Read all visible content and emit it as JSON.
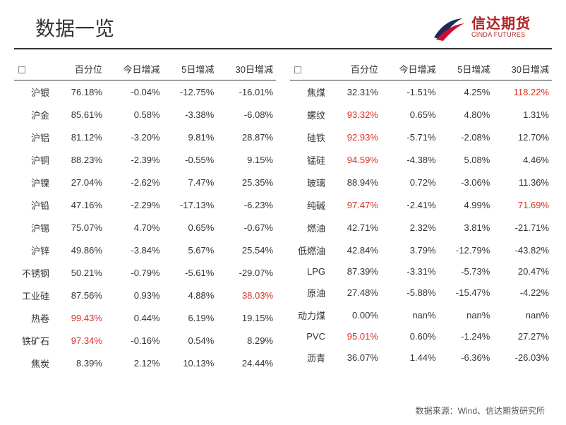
{
  "title": "数据一览",
  "logo": {
    "zh": "信达期货",
    "en": "CINDA FUTURES",
    "color": "#b22222",
    "swoosh_color_dark": "#1a2b5c",
    "swoosh_color_red": "#c8102e"
  },
  "columns": [
    "百分位",
    "今日增减",
    "5日增减",
    "30日增减"
  ],
  "left_table": [
    {
      "name": "沪银",
      "pct": "76.18%",
      "d1": "-0.04%",
      "d5": "-12.75%",
      "d30": "-16.01%"
    },
    {
      "name": "沪金",
      "pct": "85.61%",
      "d1": "0.58%",
      "d5": "-3.38%",
      "d30": "-6.08%"
    },
    {
      "name": "沪铝",
      "pct": "81.12%",
      "d1": "-3.20%",
      "d5": "9.81%",
      "d30": "28.87%"
    },
    {
      "name": "沪铜",
      "pct": "88.23%",
      "d1": "-2.39%",
      "d5": "-0.55%",
      "d30": "9.15%"
    },
    {
      "name": "沪镍",
      "pct": "27.04%",
      "d1": "-2.62%",
      "d5": "7.47%",
      "d30": "25.35%"
    },
    {
      "name": "沪铅",
      "pct": "47.16%",
      "d1": "-2.29%",
      "d5": "-17.13%",
      "d30": "-6.23%"
    },
    {
      "name": "沪锡",
      "pct": "75.07%",
      "d1": "4.70%",
      "d5": "0.65%",
      "d30": "-0.67%"
    },
    {
      "name": "沪锌",
      "pct": "49.86%",
      "d1": "-3.84%",
      "d5": "5.67%",
      "d30": "25.54%"
    },
    {
      "name": "不锈钢",
      "pct": "50.21%",
      "d1": "-0.79%",
      "d5": "-5.61%",
      "d30": "-29.07%"
    },
    {
      "name": "工业硅",
      "pct": "87.56%",
      "d1": "0.93%",
      "d5": "4.88%",
      "d30": "38.03%",
      "d30_red": true
    },
    {
      "name": "热卷",
      "pct": "99.43%",
      "pct_red": true,
      "d1": "0.44%",
      "d5": "6.19%",
      "d30": "19.15%"
    },
    {
      "name": "铁矿石",
      "pct": "97.34%",
      "pct_red": true,
      "d1": "-0.16%",
      "d5": "0.54%",
      "d30": "8.29%"
    },
    {
      "name": "焦炭",
      "pct": "8.39%",
      "d1": "2.12%",
      "d5": "10.13%",
      "d30": "24.44%"
    }
  ],
  "right_table": [
    {
      "name": "焦煤",
      "pct": "32.31%",
      "d1": "-1.51%",
      "d5": "4.25%",
      "d30": "118.22%",
      "d30_red": true
    },
    {
      "name": "螺纹",
      "pct": "93.32%",
      "pct_red": true,
      "d1": "0.65%",
      "d5": "4.80%",
      "d30": "1.31%"
    },
    {
      "name": "硅铁",
      "pct": "92.93%",
      "pct_red": true,
      "d1": "-5.71%",
      "d5": "-2.08%",
      "d30": "12.70%"
    },
    {
      "name": "锰硅",
      "pct": "94.59%",
      "pct_red": true,
      "d1": "-4.38%",
      "d5": "5.08%",
      "d30": "4.46%"
    },
    {
      "name": "玻璃",
      "pct": "88.94%",
      "d1": "0.72%",
      "d5": "-3.06%",
      "d30": "11.36%"
    },
    {
      "name": "纯碱",
      "pct": "97.47%",
      "pct_red": true,
      "d1": "-2.41%",
      "d5": "4.99%",
      "d30": "71.69%",
      "d30_red": true
    },
    {
      "name": "燃油",
      "pct": "42.71%",
      "d1": "2.32%",
      "d5": "3.81%",
      "d30": "-21.71%"
    },
    {
      "name": "低燃油",
      "pct": "42.84%",
      "d1": "3.79%",
      "d5": "-12.79%",
      "d30": "-43.82%"
    },
    {
      "name": "LPG",
      "pct": "87.39%",
      "d1": "-3.31%",
      "d5": "-5.73%",
      "d30": "20.47%"
    },
    {
      "name": "原油",
      "pct": "27.48%",
      "d1": "-5.88%",
      "d5": "-15.47%",
      "d30": "-4.22%"
    },
    {
      "name": "动力煤",
      "pct": "0.00%",
      "d1": "nan%",
      "d5": "nan%",
      "d30": "nan%"
    },
    {
      "name": "PVC",
      "pct": "95.01%",
      "pct_red": true,
      "d1": "0.60%",
      "d5": "-1.24%",
      "d30": "27.27%"
    },
    {
      "name": "沥青",
      "pct": "36.07%",
      "d1": "1.44%",
      "d5": "-6.36%",
      "d30": "-26.03%"
    }
  ],
  "footer": "数据来源：Wind、信达期货研究所",
  "colors": {
    "text": "#333333",
    "red": "#d93025",
    "border": "#333333",
    "background": "#ffffff"
  }
}
